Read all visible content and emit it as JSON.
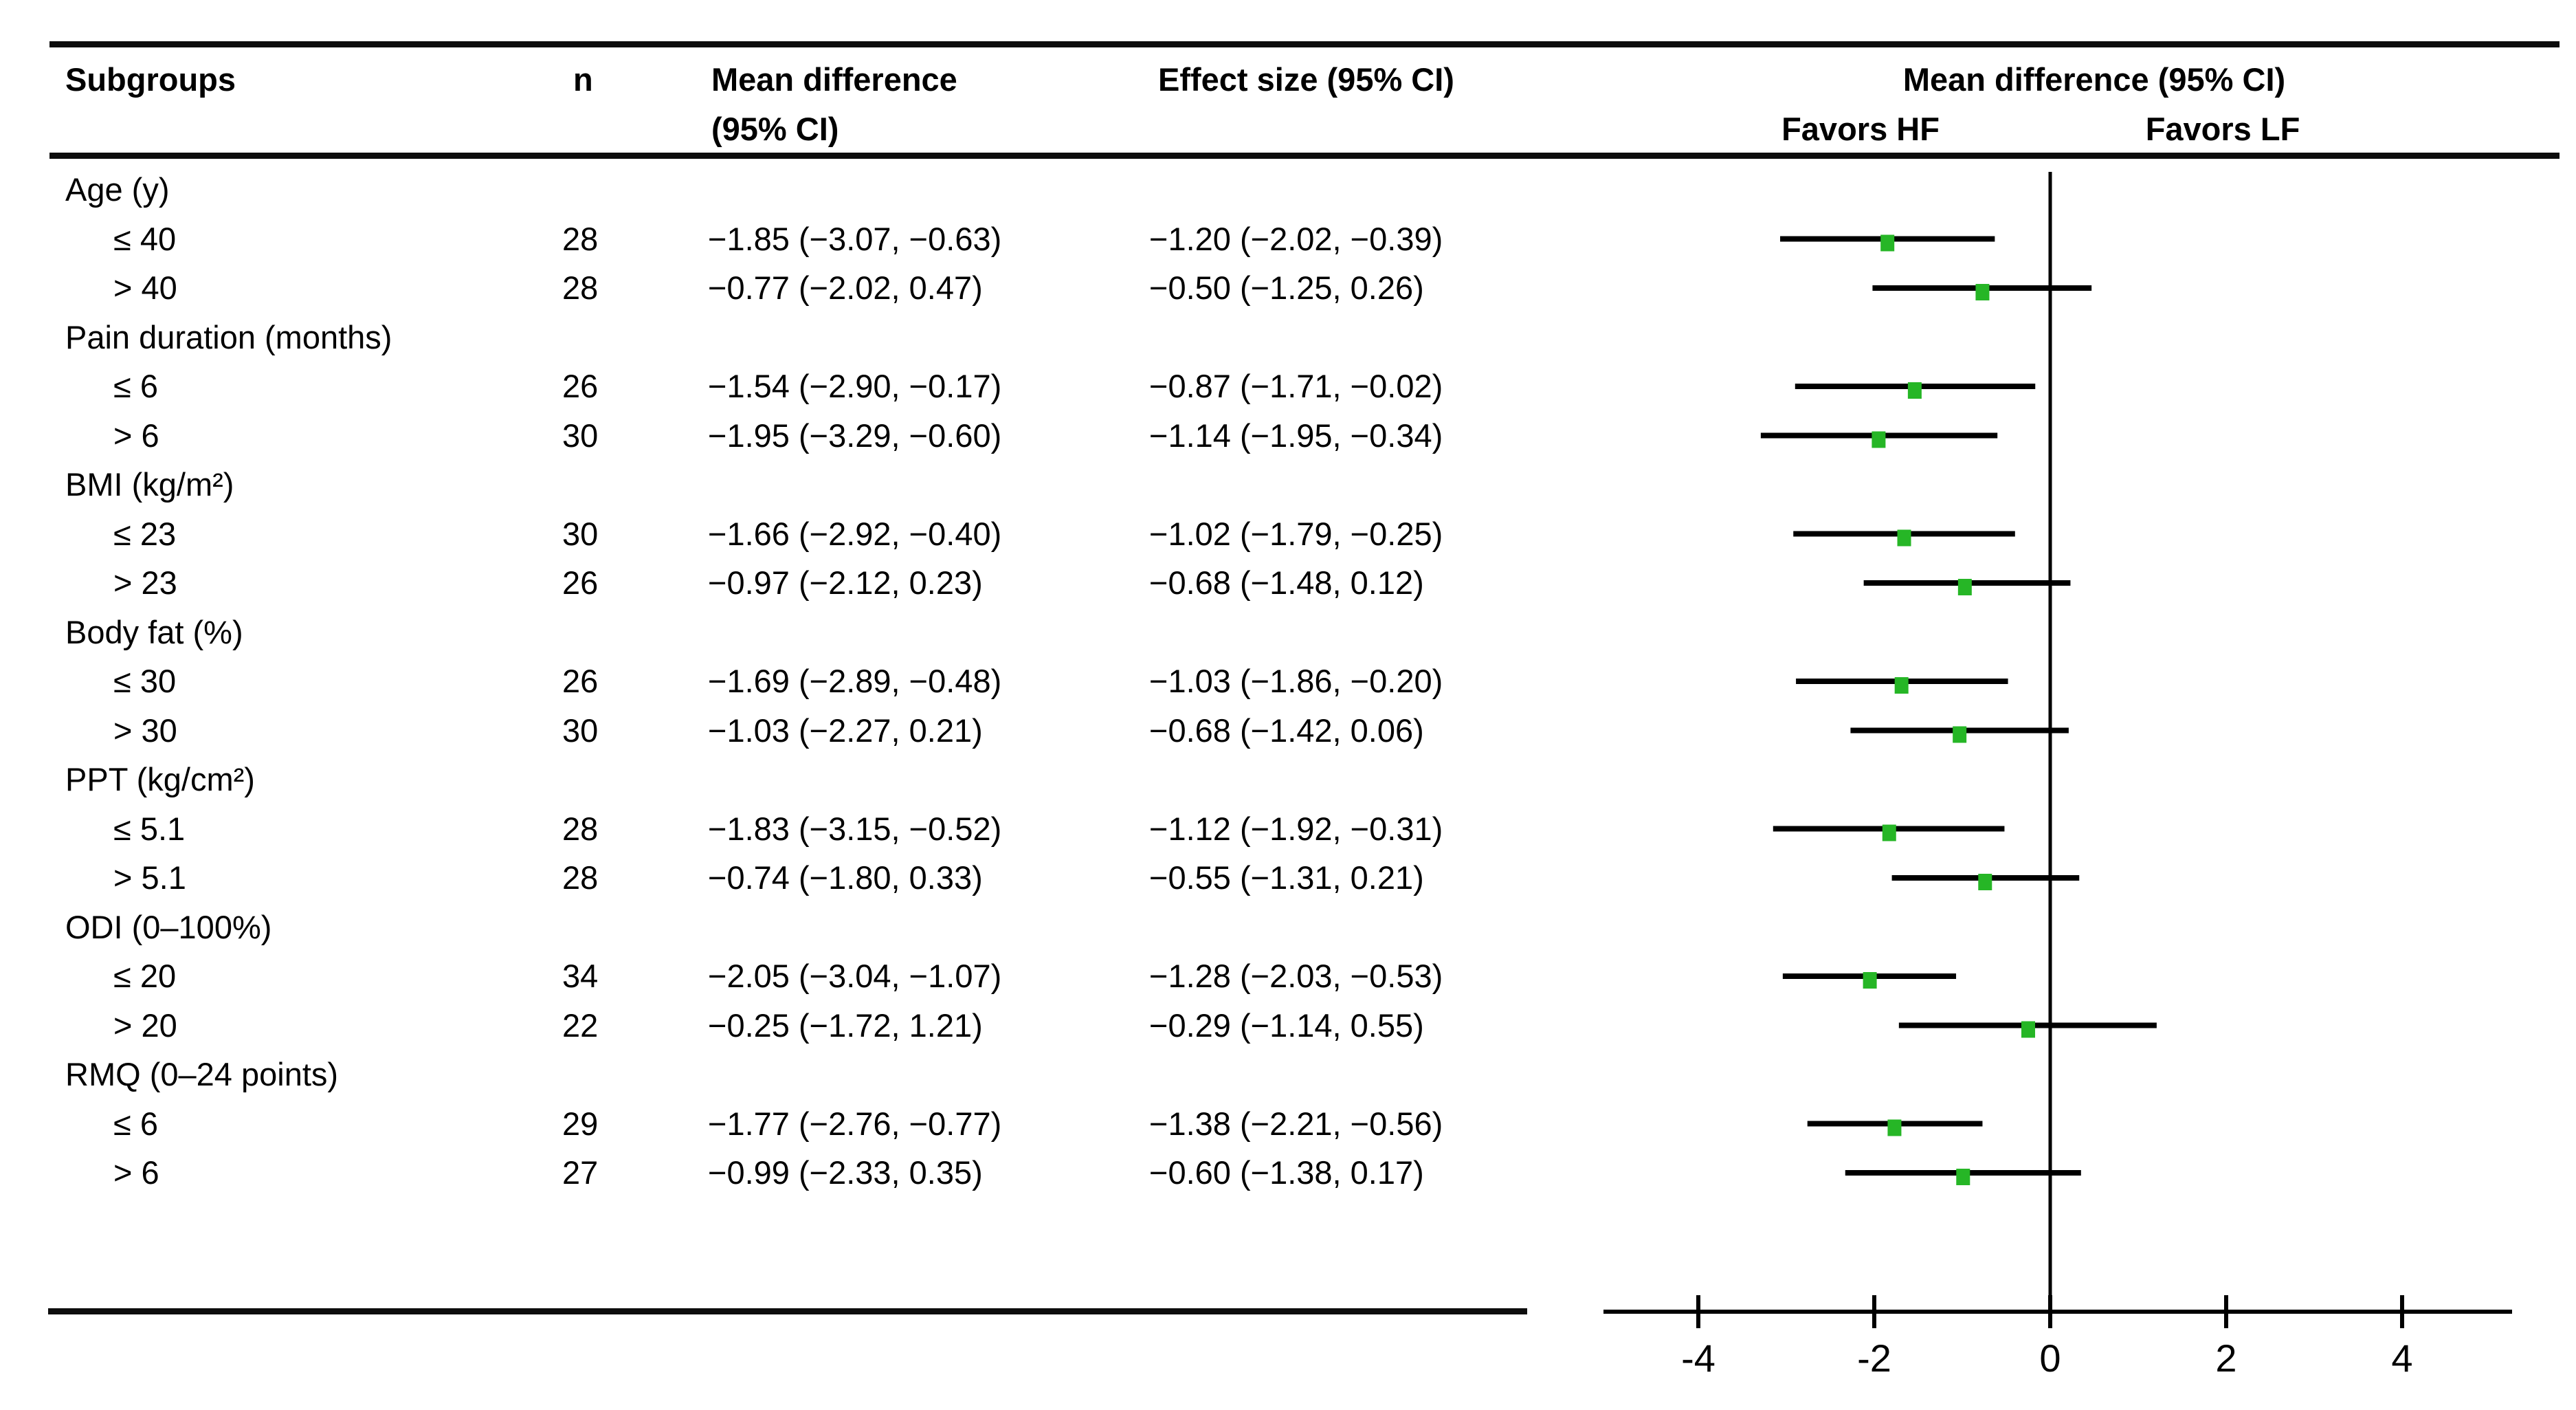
{
  "figure": {
    "headers": {
      "subgroups": "Subgroups",
      "n": "n",
      "mean_diff_line1": "Mean difference",
      "mean_diff_line2": "(95% CI)",
      "effect_size": "Effect size (95% CI)",
      "plot_title": "Mean difference (95% CI)",
      "favors_left": "Favors HF",
      "favors_right": "Favors LF"
    },
    "rows": [
      {
        "type": "group",
        "label": "Age (y)"
      },
      {
        "type": "item",
        "label": "≤ 40",
        "n": "28",
        "md": "−1.85 (−3.07, −0.63)",
        "es": "−1.20 (−2.02, −0.39)"
      },
      {
        "type": "item",
        "label": "> 40",
        "n": "28",
        "md": "−0.77 (−2.02, 0.47)",
        "es": "−0.50 (−1.25, 0.26)"
      },
      {
        "type": "group",
        "label": "Pain duration (months)"
      },
      {
        "type": "item",
        "label": "≤ 6",
        "n": "26",
        "md": "−1.54 (−2.90, −0.17)",
        "es": "−0.87 (−1.71, −0.02)"
      },
      {
        "type": "item",
        "label": "> 6",
        "n": "30",
        "md": "−1.95 (−3.29, −0.60)",
        "es": "−1.14 (−1.95, −0.34)"
      },
      {
        "type": "group",
        "label": "BMI (kg/m²)"
      },
      {
        "type": "item",
        "label": "≤ 23",
        "n": "30",
        "md": "−1.66 (−2.92, −0.40)",
        "es": "−1.02 (−1.79, −0.25)"
      },
      {
        "type": "item",
        "label": "> 23",
        "n": "26",
        "md": "−0.97 (−2.12, 0.23)",
        "es": "−0.68 (−1.48, 0.12)"
      },
      {
        "type": "group",
        "label": "Body fat (%)"
      },
      {
        "type": "item",
        "label": "≤ 30",
        "n": "26",
        "md": "−1.69 (−2.89, −0.48)",
        "es": "−1.03 (−1.86, −0.20)"
      },
      {
        "type": "item",
        "label": "> 30",
        "n": "30",
        "md": "−1.03 (−2.27, 0.21)",
        "es": "−0.68 (−1.42, 0.06)"
      },
      {
        "type": "group",
        "label": "PPT (kg/cm²)"
      },
      {
        "type": "item",
        "label": "≤ 5.1",
        "n": "28",
        "md": "−1.83 (−3.15, −0.52)",
        "es": "−1.12 (−1.92, −0.31)"
      },
      {
        "type": "item",
        "label": "> 5.1",
        "n": "28",
        "md": "−0.74 (−1.80, 0.33)",
        "es": "−0.55 (−1.31, 0.21)"
      },
      {
        "type": "group",
        "label": "ODI (0–100%)"
      },
      {
        "type": "item",
        "label": "≤ 20",
        "n": "34",
        "md": "−2.05 (−3.04, −1.07)",
        "es": "−1.28 (−2.03, −0.53)"
      },
      {
        "type": "item",
        "label": "> 20",
        "n": "22",
        "md": "−0.25 (−1.72, 1.21)",
        "es": "−0.29 (−1.14, 0.55)"
      },
      {
        "type": "group",
        "label": "RMQ (0–24 points)"
      },
      {
        "type": "item",
        "label": "≤ 6",
        "n": "29",
        "md": "−1.77 (−2.76, −0.77)",
        "es": "−1.38 (−2.21, −0.56)"
      },
      {
        "type": "item",
        "label": "> 6",
        "n": "27",
        "md": "−0.99 (−2.33, 0.35)",
        "es": "−0.60 (−1.38, 0.17)"
      }
    ]
  },
  "chart_data": {
    "type": "forest",
    "title": "Mean difference (95% CI)",
    "favors": {
      "left": "Favors HF",
      "right": "Favors LF"
    },
    "x_axis": {
      "ticks": [
        -4,
        -2,
        0,
        2,
        4
      ],
      "tick_labels": [
        "-4",
        "-2",
        "0",
        "2",
        "4"
      ],
      "range": [
        -5.1,
        5.25
      ],
      "zero_line": 0
    },
    "marker_color": "#26b626",
    "line_color": "#000000",
    "points": [
      {
        "group": "Age (y)",
        "label": "≤ 40",
        "n": 28,
        "est": -1.85,
        "lo": -3.07,
        "hi": -0.63
      },
      {
        "group": "Age (y)",
        "label": "> 40",
        "n": 28,
        "est": -0.77,
        "lo": -2.02,
        "hi": 0.47
      },
      {
        "group": "Pain duration (months)",
        "label": "≤ 6",
        "n": 26,
        "est": -1.54,
        "lo": -2.9,
        "hi": -0.17
      },
      {
        "group": "Pain duration (months)",
        "label": "> 6",
        "n": 30,
        "est": -1.95,
        "lo": -3.29,
        "hi": -0.6
      },
      {
        "group": "BMI (kg/m²)",
        "label": "≤ 23",
        "n": 30,
        "est": -1.66,
        "lo": -2.92,
        "hi": -0.4
      },
      {
        "group": "BMI (kg/m²)",
        "label": "> 23",
        "n": 26,
        "est": -0.97,
        "lo": -2.12,
        "hi": 0.23
      },
      {
        "group": "Body fat (%)",
        "label": "≤ 30",
        "n": 26,
        "est": -1.69,
        "lo": -2.89,
        "hi": -0.48
      },
      {
        "group": "Body fat (%)",
        "label": "> 30",
        "n": 30,
        "est": -1.03,
        "lo": -2.27,
        "hi": 0.21
      },
      {
        "group": "PPT (kg/cm²)",
        "label": "≤ 5.1",
        "n": 28,
        "est": -1.83,
        "lo": -3.15,
        "hi": -0.52
      },
      {
        "group": "PPT (kg/cm²)",
        "label": "> 5.1",
        "n": 28,
        "est": -0.74,
        "lo": -1.8,
        "hi": 0.33
      },
      {
        "group": "ODI (0–100%)",
        "label": "≤ 20",
        "n": 34,
        "est": -2.05,
        "lo": -3.04,
        "hi": -1.07
      },
      {
        "group": "ODI (0–100%)",
        "label": "> 20",
        "n": 22,
        "est": -0.25,
        "lo": -1.72,
        "hi": 1.21
      },
      {
        "group": "RMQ (0–24 points)",
        "label": "≤ 6",
        "n": 29,
        "est": -1.77,
        "lo": -2.76,
        "hi": -0.77
      },
      {
        "group": "RMQ (0–24 points)",
        "label": "> 6",
        "n": 27,
        "est": -0.99,
        "lo": -2.33,
        "hi": 0.35
      }
    ]
  }
}
